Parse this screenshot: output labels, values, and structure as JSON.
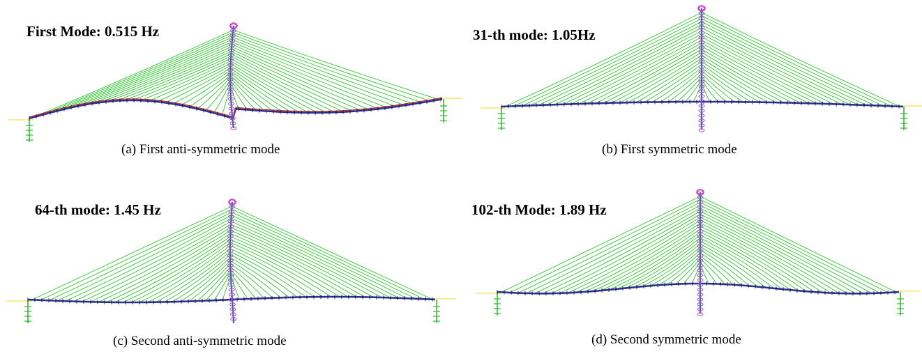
{
  "panels": [
    {
      "id": "a",
      "mode_label": "First Mode: 0.515 Hz",
      "caption": "(a) First anti-symmetric mode",
      "mode_type": "anti-symmetric-1"
    },
    {
      "id": "b",
      "mode_label": "31-th mode: 1.05Hz",
      "caption": "(b) First symmetric mode",
      "mode_type": "symmetric-1"
    },
    {
      "id": "c",
      "mode_label": "64-th mode: 1.45 Hz",
      "caption": "(c) Second anti-symmetric mode",
      "mode_type": "anti-symmetric-2"
    },
    {
      "id": "d",
      "mode_label": "102-th Mode: 1.89 Hz",
      "caption": "(d) Second symmetric mode",
      "mode_type": "symmetric-2"
    }
  ],
  "colors": {
    "cable": "#22c322",
    "deck": "#2f2f9a",
    "deck_alt": "#c62828",
    "tower": "#2a2a8a",
    "tower_marker": "#c03cc0",
    "tower_cyan": "#2ec8d8",
    "pier": "#27b827",
    "baseline": "#f2e04a",
    "marker": "#111111"
  }
}
